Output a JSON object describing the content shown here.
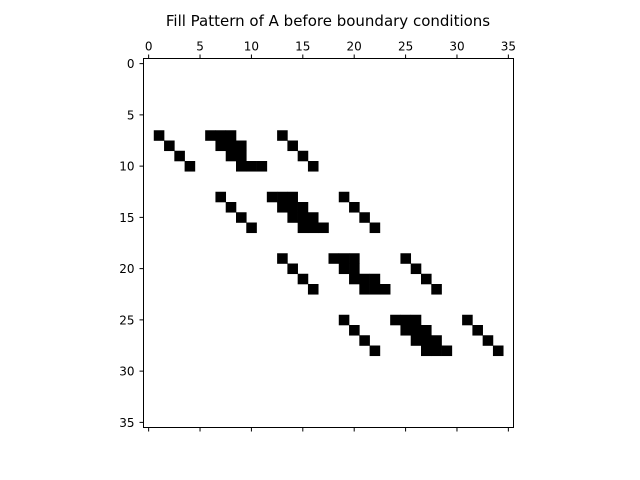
{
  "chart_data": {
    "type": "heatmap",
    "title": "Fill Pattern of A before boundary conditions",
    "xlabel": "",
    "ylabel": "",
    "n": 36,
    "xlim": [
      -0.5,
      35.5
    ],
    "ylim": [
      35.5,
      -0.5
    ],
    "x_ticks": [
      0,
      5,
      10,
      15,
      20,
      25,
      30,
      35
    ],
    "y_ticks": [
      0,
      5,
      10,
      15,
      20,
      25,
      30,
      35
    ],
    "x_tick_labels": [
      "0",
      "5",
      "10",
      "15",
      "20",
      "25",
      "30",
      "35"
    ],
    "y_tick_labels": [
      "0",
      "5",
      "10",
      "15",
      "20",
      "25",
      "30",
      "35"
    ],
    "x_axis_position": "top",
    "grid": false,
    "marker_color": "#000000",
    "nonzeros": [
      [
        7,
        1
      ],
      [
        7,
        6
      ],
      [
        7,
        7
      ],
      [
        7,
        8
      ],
      [
        7,
        13
      ],
      [
        8,
        2
      ],
      [
        8,
        7
      ],
      [
        8,
        8
      ],
      [
        8,
        9
      ],
      [
        8,
        14
      ],
      [
        9,
        3
      ],
      [
        9,
        8
      ],
      [
        9,
        9
      ],
      [
        9,
        15
      ],
      [
        10,
        4
      ],
      [
        10,
        9
      ],
      [
        10,
        10
      ],
      [
        10,
        11
      ],
      [
        10,
        16
      ],
      [
        13,
        7
      ],
      [
        13,
        12
      ],
      [
        13,
        13
      ],
      [
        13,
        14
      ],
      [
        13,
        19
      ],
      [
        14,
        8
      ],
      [
        14,
        13
      ],
      [
        14,
        14
      ],
      [
        14,
        15
      ],
      [
        14,
        20
      ],
      [
        15,
        9
      ],
      [
        15,
        14
      ],
      [
        15,
        15
      ],
      [
        15,
        16
      ],
      [
        15,
        21
      ],
      [
        16,
        10
      ],
      [
        16,
        15
      ],
      [
        16,
        16
      ],
      [
        16,
        17
      ],
      [
        16,
        22
      ],
      [
        19,
        13
      ],
      [
        19,
        18
      ],
      [
        19,
        19
      ],
      [
        19,
        20
      ],
      [
        19,
        25
      ],
      [
        20,
        14
      ],
      [
        20,
        19
      ],
      [
        20,
        20
      ],
      [
        20,
        26
      ],
      [
        21,
        15
      ],
      [
        21,
        20
      ],
      [
        21,
        21
      ],
      [
        21,
        22
      ],
      [
        21,
        27
      ],
      [
        22,
        16
      ],
      [
        22,
        21
      ],
      [
        22,
        22
      ],
      [
        22,
        23
      ],
      [
        22,
        28
      ],
      [
        25,
        19
      ],
      [
        25,
        24
      ],
      [
        25,
        25
      ],
      [
        25,
        26
      ],
      [
        25,
        31
      ],
      [
        26,
        20
      ],
      [
        26,
        25
      ],
      [
        26,
        26
      ],
      [
        26,
        27
      ],
      [
        26,
        32
      ],
      [
        27,
        21
      ],
      [
        27,
        26
      ],
      [
        27,
        27
      ],
      [
        27,
        28
      ],
      [
        27,
        33
      ],
      [
        28,
        22
      ],
      [
        28,
        27
      ],
      [
        28,
        28
      ],
      [
        28,
        29
      ],
      [
        28,
        34
      ]
    ]
  }
}
